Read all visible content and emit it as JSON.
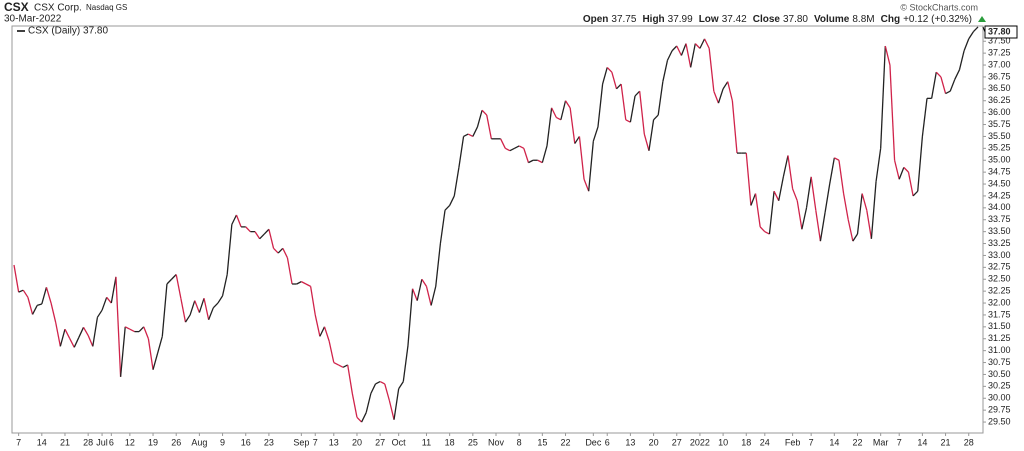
{
  "header": {
    "symbol": "CSX",
    "name": "CSX Corp.",
    "exchange": "Nasdaq GS",
    "date": "30-Mar-2022",
    "credit": "© StockCharts.com",
    "quote": [
      {
        "label": "Open",
        "value": "37.75"
      },
      {
        "label": "High",
        "value": "37.99"
      },
      {
        "label": "Low",
        "value": "37.42"
      },
      {
        "label": "Close",
        "value": "37.80"
      },
      {
        "label": "Volume",
        "value": "8.8M"
      },
      {
        "label": "Chg",
        "value": "+0.12 (+0.32%)"
      }
    ]
  },
  "chart_data": {
    "type": "line",
    "up_color": "#222222",
    "down_color": "#d0234a",
    "last_label": "37.80",
    "legend": "top-left",
    "categories": [
      null,
      "7",
      null,
      null,
      null,
      null,
      "14",
      null,
      null,
      null,
      null,
      "21",
      null,
      null,
      null,
      null,
      "28",
      null,
      null,
      "Jul",
      null,
      "6",
      null,
      null,
      null,
      "12",
      null,
      null,
      null,
      null,
      "19",
      null,
      null,
      null,
      null,
      "26",
      null,
      null,
      null,
      null,
      "Aug",
      null,
      null,
      null,
      null,
      "9",
      null,
      null,
      null,
      null,
      "16",
      null,
      null,
      null,
      null,
      "23",
      null,
      null,
      null,
      null,
      null,
      null,
      "Sep",
      null,
      null,
      "7",
      null,
      null,
      null,
      "13",
      null,
      null,
      null,
      null,
      "20",
      null,
      null,
      null,
      null,
      "27",
      null,
      null,
      null,
      "Oct",
      null,
      null,
      null,
      null,
      null,
      "11",
      null,
      null,
      null,
      null,
      "18",
      null,
      null,
      null,
      null,
      "25",
      null,
      null,
      null,
      null,
      "Nov",
      null,
      null,
      null,
      null,
      "8",
      null,
      null,
      null,
      null,
      "15",
      null,
      null,
      null,
      null,
      "22",
      null,
      null,
      null,
      null,
      null,
      "Dec",
      null,
      null,
      "6",
      null,
      null,
      null,
      null,
      "13",
      null,
      null,
      null,
      null,
      "20",
      null,
      null,
      null,
      null,
      "27",
      null,
      null,
      null,
      null,
      "2022",
      null,
      null,
      null,
      null,
      "10",
      null,
      null,
      null,
      null,
      "18",
      null,
      null,
      null,
      "24",
      null,
      null,
      null,
      null,
      null,
      "Feb",
      null,
      null,
      null,
      "7",
      null,
      null,
      null,
      null,
      "14",
      null,
      null,
      null,
      null,
      "22",
      null,
      null,
      null,
      null,
      "Mar",
      null,
      null,
      null,
      "7",
      null,
      null,
      null,
      null,
      "14",
      null,
      null,
      null,
      null,
      "21",
      null,
      null,
      null,
      null,
      "28",
      null,
      null
    ],
    "series": [
      {
        "name": "CSX (Daily) 37.80",
        "color": "#000000",
        "values": [
          32.8,
          32.23,
          32.27,
          32.12,
          31.76,
          31.95,
          31.98,
          32.33,
          32.0,
          31.59,
          31.09,
          31.45,
          31.26,
          31.07,
          31.28,
          31.49,
          31.32,
          31.09,
          31.7,
          31.85,
          32.12,
          32.0,
          32.55,
          30.45,
          31.5,
          31.45,
          31.4,
          31.4,
          31.5,
          31.25,
          30.6,
          30.95,
          31.3,
          32.4,
          32.5,
          32.6,
          32.1,
          31.6,
          31.75,
          32.05,
          31.8,
          32.1,
          31.65,
          31.9,
          32.0,
          32.15,
          32.6,
          33.65,
          33.85,
          33.6,
          33.6,
          33.5,
          33.5,
          33.35,
          33.45,
          33.55,
          33.15,
          33.05,
          33.15,
          32.95,
          32.4,
          32.4,
          32.45,
          32.4,
          32.35,
          31.75,
          31.3,
          31.5,
          31.2,
          30.75,
          30.7,
          30.65,
          30.7,
          30.1,
          29.6,
          29.5,
          29.7,
          30.1,
          30.3,
          30.35,
          30.3,
          29.95,
          29.55,
          30.2,
          30.35,
          31.1,
          32.3,
          32.05,
          32.5,
          32.35,
          31.95,
          32.35,
          33.25,
          33.95,
          34.05,
          34.25,
          34.85,
          35.5,
          35.55,
          35.5,
          35.7,
          36.05,
          35.95,
          35.45,
          35.45,
          35.45,
          35.25,
          35.2,
          35.25,
          35.3,
          35.25,
          34.95,
          35.0,
          35.0,
          34.95,
          35.3,
          36.1,
          35.9,
          35.85,
          36.25,
          36.1,
          35.35,
          35.5,
          34.6,
          34.35,
          35.4,
          35.7,
          36.6,
          36.95,
          36.85,
          36.5,
          36.6,
          35.85,
          35.8,
          36.35,
          36.45,
          35.55,
          35.2,
          35.85,
          35.95,
          36.65,
          37.1,
          37.3,
          37.4,
          37.2,
          37.45,
          36.95,
          37.45,
          37.35,
          37.55,
          37.35,
          36.45,
          36.2,
          36.5,
          36.65,
          36.25,
          35.15,
          35.15,
          35.15,
          34.05,
          34.3,
          33.6,
          33.5,
          33.45,
          34.35,
          34.15,
          34.65,
          35.1,
          34.4,
          34.15,
          33.55,
          34.0,
          34.65,
          33.95,
          33.3,
          33.9,
          34.5,
          35.05,
          35.0,
          34.3,
          33.75,
          33.3,
          33.45,
          34.3,
          33.95,
          33.35,
          34.55,
          35.25,
          37.4,
          37.0,
          35.0,
          34.6,
          34.85,
          34.75,
          34.25,
          34.35,
          35.5,
          36.3,
          36.3,
          36.85,
          36.75,
          36.4,
          36.45,
          36.7,
          36.9,
          37.3,
          37.55,
          37.7,
          37.8
        ]
      }
    ],
    "ylim": [
      29.27,
      37.82
    ],
    "yticks": [
      {
        "value": 29.5,
        "label": "29.50"
      },
      {
        "value": 29.75,
        "label": "29.75"
      },
      {
        "value": 30,
        "label": "30.00"
      },
      {
        "value": 30.25,
        "label": "30.25"
      },
      {
        "value": 30.5,
        "label": "30.50"
      },
      {
        "value": 30.75,
        "label": "30.75"
      },
      {
        "value": 31,
        "label": "31.00"
      },
      {
        "value": 31.25,
        "label": "31.25"
      },
      {
        "value": 31.5,
        "label": "31.50"
      },
      {
        "value": 31.75,
        "label": "31.75"
      },
      {
        "value": 32,
        "label": "32.00"
      },
      {
        "value": 32.25,
        "label": "32.25"
      },
      {
        "value": 32.5,
        "label": "32.50"
      },
      {
        "value": 32.75,
        "label": "32.75"
      },
      {
        "value": 33,
        "label": "33.00"
      },
      {
        "value": 33.25,
        "label": "33.25"
      },
      {
        "value": 33.5,
        "label": "33.50"
      },
      {
        "value": 33.75,
        "label": "33.75"
      },
      {
        "value": 34,
        "label": "34.00"
      },
      {
        "value": 34.25,
        "label": "34.25"
      },
      {
        "value": 34.5,
        "label": "34.50"
      },
      {
        "value": 34.75,
        "label": "34.75"
      },
      {
        "value": 35,
        "label": "35.00"
      },
      {
        "value": 35.25,
        "label": "35.25"
      },
      {
        "value": 35.5,
        "label": "35.50"
      },
      {
        "value": 35.75,
        "label": "35.75"
      },
      {
        "value": 36,
        "label": "36.00"
      },
      {
        "value": 36.25,
        "label": "36.25"
      },
      {
        "value": 36.5,
        "label": "36.50"
      },
      {
        "value": 36.75,
        "label": "36.75"
      },
      {
        "value": 37,
        "label": "37.00"
      },
      {
        "value": 37.25,
        "label": "37.25"
      },
      {
        "value": 37.5,
        "label": "37.50"
      }
    ],
    "grid": false
  }
}
